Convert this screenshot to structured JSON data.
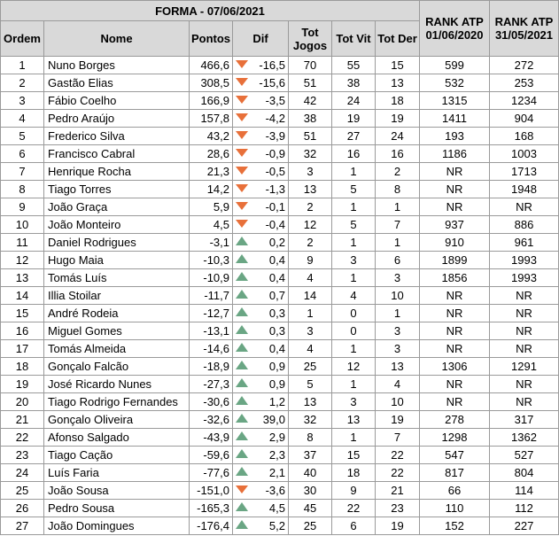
{
  "title": "FORMA - 07/06/2021",
  "headers": {
    "ordem": "Ordem",
    "nome": "Nome",
    "pontos": "Pontos",
    "dif": "Dif",
    "tot_jogos": "Tot Jogos",
    "tot_vit": "Tot Vit",
    "tot_der": "Tot Der",
    "rank1": "RANK ATP 01/06/2020",
    "rank2": "RANK ATP 31/05/2021"
  },
  "colors": {
    "header_bg": "#d9d9d9",
    "down_arrow": "#e8703a",
    "up_arrow": "#6aa684"
  },
  "rows": [
    {
      "ordem": "1",
      "nome": "Nuno Borges",
      "pontos": "466,6",
      "trend": "down",
      "dif": "-16,5",
      "jogos": "70",
      "vit": "55",
      "der": "15",
      "rank1": "599",
      "rank2": "272"
    },
    {
      "ordem": "2",
      "nome": "Gastão Elias",
      "pontos": "308,5",
      "trend": "down",
      "dif": "-15,6",
      "jogos": "51",
      "vit": "38",
      "der": "13",
      "rank1": "532",
      "rank2": "253"
    },
    {
      "ordem": "3",
      "nome": "Fábio Coelho",
      "pontos": "166,9",
      "trend": "down",
      "dif": "-3,5",
      "jogos": "42",
      "vit": "24",
      "der": "18",
      "rank1": "1315",
      "rank2": "1234"
    },
    {
      "ordem": "4",
      "nome": "Pedro Araújo",
      "pontos": "157,8",
      "trend": "down",
      "dif": "-4,2",
      "jogos": "38",
      "vit": "19",
      "der": "19",
      "rank1": "1411",
      "rank2": "904"
    },
    {
      "ordem": "5",
      "nome": "Frederico Silva",
      "pontos": "43,2",
      "trend": "down",
      "dif": "-3,9",
      "jogos": "51",
      "vit": "27",
      "der": "24",
      "rank1": "193",
      "rank2": "168"
    },
    {
      "ordem": "6",
      "nome": "Francisco Cabral",
      "pontos": "28,6",
      "trend": "down",
      "dif": "-0,9",
      "jogos": "32",
      "vit": "16",
      "der": "16",
      "rank1": "1186",
      "rank2": "1003"
    },
    {
      "ordem": "7",
      "nome": "Henrique Rocha",
      "pontos": "21,3",
      "trend": "down",
      "dif": "-0,5",
      "jogos": "3",
      "vit": "1",
      "der": "2",
      "rank1": "NR",
      "rank2": "1713"
    },
    {
      "ordem": "8",
      "nome": "Tiago Torres",
      "pontos": "14,2",
      "trend": "down",
      "dif": "-1,3",
      "jogos": "13",
      "vit": "5",
      "der": "8",
      "rank1": "NR",
      "rank2": "1948"
    },
    {
      "ordem": "9",
      "nome": "João Graça",
      "pontos": "5,9",
      "trend": "down",
      "dif": "-0,1",
      "jogos": "2",
      "vit": "1",
      "der": "1",
      "rank1": "NR",
      "rank2": "NR"
    },
    {
      "ordem": "10",
      "nome": "João Monteiro",
      "pontos": "4,5",
      "trend": "down",
      "dif": "-0,4",
      "jogos": "12",
      "vit": "5",
      "der": "7",
      "rank1": "937",
      "rank2": "886"
    },
    {
      "ordem": "11",
      "nome": "Daniel Rodrigues",
      "pontos": "-3,1",
      "trend": "up",
      "dif": "0,2",
      "jogos": "2",
      "vit": "1",
      "der": "1",
      "rank1": "910",
      "rank2": "961"
    },
    {
      "ordem": "12",
      "nome": "Hugo Maia",
      "pontos": "-10,3",
      "trend": "up",
      "dif": "0,4",
      "jogos": "9",
      "vit": "3",
      "der": "6",
      "rank1": "1899",
      "rank2": "1993"
    },
    {
      "ordem": "13",
      "nome": "Tomás Luís",
      "pontos": "-10,9",
      "trend": "up",
      "dif": "0,4",
      "jogos": "4",
      "vit": "1",
      "der": "3",
      "rank1": "1856",
      "rank2": "1993"
    },
    {
      "ordem": "14",
      "nome": "Illia Stoilar",
      "pontos": "-11,7",
      "trend": "up",
      "dif": "0,7",
      "jogos": "14",
      "vit": "4",
      "der": "10",
      "rank1": "NR",
      "rank2": "NR"
    },
    {
      "ordem": "15",
      "nome": "André Rodeia",
      "pontos": "-12,7",
      "trend": "up",
      "dif": "0,3",
      "jogos": "1",
      "vit": "0",
      "der": "1",
      "rank1": "NR",
      "rank2": "NR"
    },
    {
      "ordem": "16",
      "nome": "Miguel Gomes",
      "pontos": "-13,1",
      "trend": "up",
      "dif": "0,3",
      "jogos": "3",
      "vit": "0",
      "der": "3",
      "rank1": "NR",
      "rank2": "NR"
    },
    {
      "ordem": "17",
      "nome": "Tomás Almeida",
      "pontos": "-14,6",
      "trend": "up",
      "dif": "0,4",
      "jogos": "4",
      "vit": "1",
      "der": "3",
      "rank1": "NR",
      "rank2": "NR"
    },
    {
      "ordem": "18",
      "nome": "Gonçalo Falcão",
      "pontos": "-18,9",
      "trend": "up",
      "dif": "0,9",
      "jogos": "25",
      "vit": "12",
      "der": "13",
      "rank1": "1306",
      "rank2": "1291"
    },
    {
      "ordem": "19",
      "nome": "José Ricardo Nunes",
      "pontos": "-27,3",
      "trend": "up",
      "dif": "0,9",
      "jogos": "5",
      "vit": "1",
      "der": "4",
      "rank1": "NR",
      "rank2": "NR"
    },
    {
      "ordem": "20",
      "nome": "Tiago Rodrigo Fernandes",
      "pontos": "-30,6",
      "trend": "up",
      "dif": "1,2",
      "jogos": "13",
      "vit": "3",
      "der": "10",
      "rank1": "NR",
      "rank2": "NR"
    },
    {
      "ordem": "21",
      "nome": "Gonçalo Oliveira",
      "pontos": "-32,6",
      "trend": "up",
      "dif": "39,0",
      "jogos": "32",
      "vit": "13",
      "der": "19",
      "rank1": "278",
      "rank2": "317"
    },
    {
      "ordem": "22",
      "nome": "Afonso Salgado",
      "pontos": "-43,9",
      "trend": "up",
      "dif": "2,9",
      "jogos": "8",
      "vit": "1",
      "der": "7",
      "rank1": "1298",
      "rank2": "1362"
    },
    {
      "ordem": "23",
      "nome": "Tiago Cação",
      "pontos": "-59,6",
      "trend": "up",
      "dif": "2,3",
      "jogos": "37",
      "vit": "15",
      "der": "22",
      "rank1": "547",
      "rank2": "527"
    },
    {
      "ordem": "24",
      "nome": "Luís Faria",
      "pontos": "-77,6",
      "trend": "up",
      "dif": "2,1",
      "jogos": "40",
      "vit": "18",
      "der": "22",
      "rank1": "817",
      "rank2": "804"
    },
    {
      "ordem": "25",
      "nome": "João Sousa",
      "pontos": "-151,0",
      "trend": "down",
      "dif": "-3,6",
      "jogos": "30",
      "vit": "9",
      "der": "21",
      "rank1": "66",
      "rank2": "114"
    },
    {
      "ordem": "26",
      "nome": "Pedro Sousa",
      "pontos": "-165,3",
      "trend": "up",
      "dif": "4,5",
      "jogos": "45",
      "vit": "22",
      "der": "23",
      "rank1": "110",
      "rank2": "112"
    },
    {
      "ordem": "27",
      "nome": "João Domingues",
      "pontos": "-176,4",
      "trend": "up",
      "dif": "5,2",
      "jogos": "25",
      "vit": "6",
      "der": "19",
      "rank1": "152",
      "rank2": "227"
    }
  ]
}
